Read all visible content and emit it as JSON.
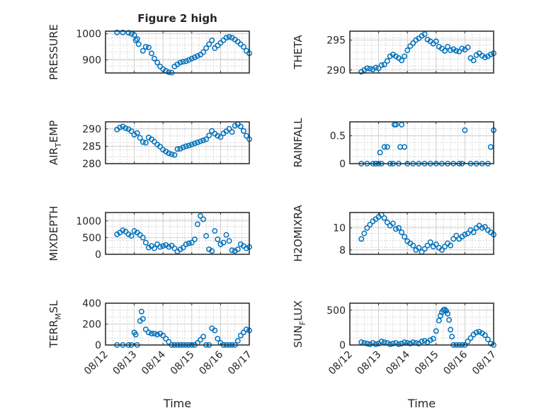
{
  "chart_data": [
    {
      "type": "scatter",
      "title": "Figure 2 high",
      "ylabel": "PRESSURE",
      "ylim": [
        850,
        1010
      ],
      "yticks": [
        900,
        1000
      ],
      "xlim": [
        0,
        5
      ],
      "xticks": [],
      "x": [
        0.4,
        0.6,
        0.8,
        0.9,
        1.0,
        1.05,
        1.1,
        1.15,
        1.3,
        1.4,
        1.5,
        1.6,
        1.7,
        1.8,
        1.9,
        2.0,
        2.1,
        2.2,
        2.3,
        2.4,
        2.5,
        2.6,
        2.7,
        2.8,
        2.9,
        3.0,
        3.1,
        3.2,
        3.3,
        3.4,
        3.5,
        3.6,
        3.7,
        3.8,
        3.9,
        4.0,
        4.1,
        4.2,
        4.3,
        4.4,
        4.5,
        4.6,
        4.7,
        4.8,
        4.9,
        5.0
      ],
      "values": [
        1005,
        1005,
        1004,
        1000,
        995,
        975,
        980,
        960,
        935,
        950,
        948,
        925,
        905,
        890,
        875,
        865,
        858,
        853,
        851,
        875,
        883,
        890,
        893,
        895,
        900,
        905,
        910,
        915,
        920,
        930,
        945,
        960,
        975,
        945,
        955,
        965,
        975,
        985,
        988,
        985,
        978,
        970,
        960,
        950,
        935,
        925
      ]
    },
    {
      "type": "scatter",
      "ylabel": "THETA",
      "ylim": [
        289.5,
        296.5
      ],
      "yticks": [
        290,
        295
      ],
      "xlim": [
        0,
        5
      ],
      "xticks": [],
      "x": [
        0.4,
        0.5,
        0.6,
        0.7,
        0.8,
        0.9,
        1.0,
        1.1,
        1.2,
        1.3,
        1.4,
        1.5,
        1.6,
        1.7,
        1.8,
        1.9,
        2.0,
        2.1,
        2.2,
        2.3,
        2.4,
        2.5,
        2.6,
        2.7,
        2.8,
        2.9,
        3.0,
        3.1,
        3.2,
        3.3,
        3.4,
        3.5,
        3.6,
        3.7,
        3.8,
        3.9,
        4.0,
        4.1,
        4.2,
        4.3,
        4.4,
        4.5,
        4.6,
        4.7,
        4.8,
        4.9,
        5.0
      ],
      "values": [
        289.7,
        290.0,
        290.3,
        290.2,
        290.1,
        290.4,
        290.3,
        290.8,
        290.9,
        291.5,
        292.3,
        292.6,
        292.3,
        292.0,
        291.6,
        292.3,
        293.3,
        294.0,
        294.5,
        295.0,
        295.3,
        295.7,
        296.0,
        295.1,
        294.8,
        294.4,
        294.8,
        293.9,
        293.6,
        293.2,
        293.9,
        293.3,
        293.5,
        293.2,
        293.1,
        293.6,
        293.4,
        293.8,
        292.0,
        291.6,
        292.5,
        292.8,
        292.4,
        292.1,
        292.3,
        292.6,
        292.8
      ]
    },
    {
      "type": "scatter",
      "ylabel": "AIR_TEMP",
      "ylim": [
        280,
        292
      ],
      "yticks": [
        280,
        285,
        290
      ],
      "xlim": [
        0,
        5
      ],
      "xticks": [],
      "x": [
        0.4,
        0.5,
        0.6,
        0.7,
        0.8,
        0.9,
        1.0,
        1.1,
        1.2,
        1.3,
        1.4,
        1.5,
        1.6,
        1.7,
        1.8,
        1.9,
        2.0,
        2.1,
        2.2,
        2.3,
        2.4,
        2.5,
        2.6,
        2.7,
        2.8,
        2.9,
        3.0,
        3.1,
        3.2,
        3.3,
        3.4,
        3.5,
        3.6,
        3.7,
        3.8,
        3.9,
        4.0,
        4.1,
        4.2,
        4.3,
        4.4,
        4.5,
        4.6,
        4.7,
        4.8,
        4.9,
        5.0
      ],
      "values": [
        289.8,
        290.4,
        290.7,
        290.2,
        289.9,
        289.3,
        288.3,
        288.8,
        287.4,
        286.2,
        286.0,
        287.5,
        287.0,
        286.3,
        285.5,
        284.9,
        284.0,
        283.5,
        283.0,
        282.7,
        282.5,
        284.2,
        284.3,
        284.7,
        285.0,
        285.2,
        285.5,
        285.8,
        286.1,
        286.4,
        286.7,
        287.0,
        288.1,
        289.4,
        288.6,
        288.0,
        287.6,
        288.7,
        289.3,
        290.0,
        289.1,
        290.9,
        291.3,
        290.7,
        289.4,
        288.0,
        287.0
      ]
    },
    {
      "type": "scatter",
      "ylabel": "RAINFALL",
      "ylim": [
        0,
        0.75
      ],
      "yticks": [
        0,
        0.5
      ],
      "xlim": [
        0,
        5
      ],
      "xticks": [],
      "x": [
        0.4,
        0.6,
        0.8,
        0.9,
        1.0,
        1.05,
        1.1,
        1.2,
        1.3,
        1.4,
        1.5,
        1.55,
        1.6,
        1.7,
        1.75,
        1.8,
        1.9,
        2.0,
        2.2,
        2.4,
        2.6,
        2.8,
        3.0,
        3.2,
        3.4,
        3.6,
        3.8,
        3.9,
        4.0,
        4.2,
        4.4,
        4.6,
        4.8,
        4.9,
        5.0
      ],
      "values": [
        0,
        0,
        0,
        0,
        0,
        0.2,
        0,
        0.3,
        0.3,
        0,
        0,
        0.7,
        0.7,
        0,
        0.3,
        0.7,
        0.3,
        0,
        0,
        0,
        0,
        0,
        0,
        0,
        0,
        0,
        0,
        0,
        0.6,
        0,
        0,
        0,
        0,
        0.3,
        0.6
      ]
    },
    {
      "type": "scatter",
      "ylabel": "MIXDEPTH",
      "ylim": [
        0,
        1250
      ],
      "yticks": [
        0,
        500,
        1000
      ],
      "xlim": [
        0,
        5
      ],
      "xticks": [],
      "x": [
        0.4,
        0.5,
        0.6,
        0.7,
        0.8,
        0.9,
        1.0,
        1.1,
        1.2,
        1.3,
        1.4,
        1.5,
        1.6,
        1.7,
        1.8,
        1.9,
        2.0,
        2.1,
        2.2,
        2.3,
        2.4,
        2.5,
        2.6,
        2.7,
        2.8,
        2.9,
        3.0,
        3.1,
        3.2,
        3.3,
        3.4,
        3.5,
        3.6,
        3.7,
        3.8,
        3.9,
        4.0,
        4.1,
        4.2,
        4.3,
        4.4,
        4.5,
        4.6,
        4.7,
        4.8,
        4.9,
        5.0
      ],
      "values": [
        600,
        650,
        720,
        680,
        600,
        550,
        700,
        650,
        580,
        500,
        350,
        200,
        250,
        180,
        300,
        220,
        250,
        280,
        220,
        260,
        180,
        80,
        150,
        200,
        300,
        330,
        350,
        450,
        900,
        1150,
        1050,
        550,
        150,
        100,
        700,
        450,
        300,
        350,
        580,
        400,
        120,
        100,
        150,
        300,
        250,
        180,
        220
      ]
    },
    {
      "type": "scatter",
      "ylabel": "H2OMIXRA",
      "ylim": [
        7.6,
        11.4
      ],
      "yticks": [
        8,
        10
      ],
      "xlim": [
        0,
        5
      ],
      "xticks": [],
      "x": [
        0.4,
        0.5,
        0.6,
        0.7,
        0.8,
        0.9,
        1.0,
        1.1,
        1.2,
        1.3,
        1.4,
        1.5,
        1.6,
        1.7,
        1.8,
        1.9,
        2.0,
        2.1,
        2.2,
        2.3,
        2.4,
        2.5,
        2.6,
        2.7,
        2.8,
        2.9,
        3.0,
        3.1,
        3.2,
        3.3,
        3.4,
        3.5,
        3.6,
        3.7,
        3.8,
        3.9,
        4.0,
        4.1,
        4.2,
        4.3,
        4.4,
        4.5,
        4.6,
        4.7,
        4.8,
        4.9,
        5.0
      ],
      "values": [
        9.0,
        9.5,
        10.0,
        10.3,
        10.6,
        10.8,
        11.0,
        11.2,
        10.9,
        10.5,
        10.2,
        10.4,
        9.9,
        10.0,
        9.6,
        9.2,
        8.8,
        8.6,
        8.4,
        8.0,
        8.2,
        7.8,
        8.1,
        8.4,
        8.7,
        8.3,
        8.5,
        8.2,
        8.0,
        8.3,
        8.6,
        8.4,
        9.0,
        9.3,
        9.0,
        9.2,
        9.4,
        9.5,
        9.8,
        9.6,
        10.0,
        10.2,
        10.0,
        10.1,
        9.8,
        9.6,
        9.4
      ]
    },
    {
      "type": "scatter",
      "ylabel": "TERR_MSL",
      "ylim": [
        0,
        400
      ],
      "yticks": [
        0,
        200,
        400
      ],
      "xlim": [
        0,
        5
      ],
      "xticks": [
        "08/12",
        "08/13",
        "08/14",
        "08/15",
        "08/16",
        "08/17"
      ],
      "xlabel": "Time",
      "x": [
        0.4,
        0.6,
        0.8,
        0.9,
        1.0,
        1.05,
        1.1,
        1.2,
        1.25,
        1.3,
        1.4,
        1.5,
        1.6,
        1.7,
        1.8,
        1.9,
        2.0,
        2.1,
        2.2,
        2.3,
        2.4,
        2.5,
        2.6,
        2.7,
        2.8,
        2.9,
        3.0,
        3.1,
        3.2,
        3.3,
        3.4,
        3.5,
        3.6,
        3.7,
        3.8,
        3.9,
        4.0,
        4.1,
        4.2,
        4.3,
        4.4,
        4.5,
        4.6,
        4.7,
        4.8,
        4.9,
        5.0
      ],
      "values": [
        0,
        0,
        0,
        0,
        120,
        100,
        0,
        230,
        320,
        250,
        150,
        120,
        110,
        110,
        100,
        110,
        90,
        60,
        30,
        0,
        0,
        0,
        0,
        0,
        0,
        0,
        0,
        0,
        20,
        50,
        80,
        0,
        0,
        160,
        140,
        60,
        20,
        0,
        0,
        0,
        0,
        0,
        40,
        90,
        120,
        150,
        140
      ]
    },
    {
      "type": "scatter",
      "ylabel": "SUN_FLUX",
      "ylim": [
        0,
        600
      ],
      "yticks": [
        0,
        500
      ],
      "xlim": [
        0,
        5
      ],
      "xticks": [
        "08/12",
        "08/13",
        "08/14",
        "08/15",
        "08/16",
        "08/17"
      ],
      "xlabel": "Time",
      "x": [
        0.4,
        0.5,
        0.6,
        0.7,
        0.8,
        0.9,
        1.0,
        1.1,
        1.2,
        1.3,
        1.4,
        1.5,
        1.6,
        1.7,
        1.8,
        1.9,
        2.0,
        2.1,
        2.2,
        2.3,
        2.4,
        2.5,
        2.6,
        2.7,
        2.8,
        2.9,
        3.0,
        3.1,
        3.15,
        3.2,
        3.25,
        3.3,
        3.35,
        3.4,
        3.45,
        3.5,
        3.55,
        3.6,
        3.7,
        3.8,
        3.9,
        4.0,
        4.1,
        4.2,
        4.3,
        4.4,
        4.5,
        4.6,
        4.7,
        4.8,
        4.9,
        5.0
      ],
      "values": [
        40,
        30,
        20,
        10,
        30,
        10,
        20,
        50,
        40,
        30,
        10,
        20,
        30,
        10,
        20,
        40,
        30,
        20,
        40,
        30,
        20,
        50,
        60,
        40,
        70,
        90,
        200,
        350,
        420,
        470,
        500,
        510,
        490,
        450,
        360,
        220,
        120,
        0,
        0,
        0,
        0,
        0,
        50,
        100,
        150,
        180,
        190,
        170,
        140,
        80,
        20,
        0
      ]
    }
  ]
}
